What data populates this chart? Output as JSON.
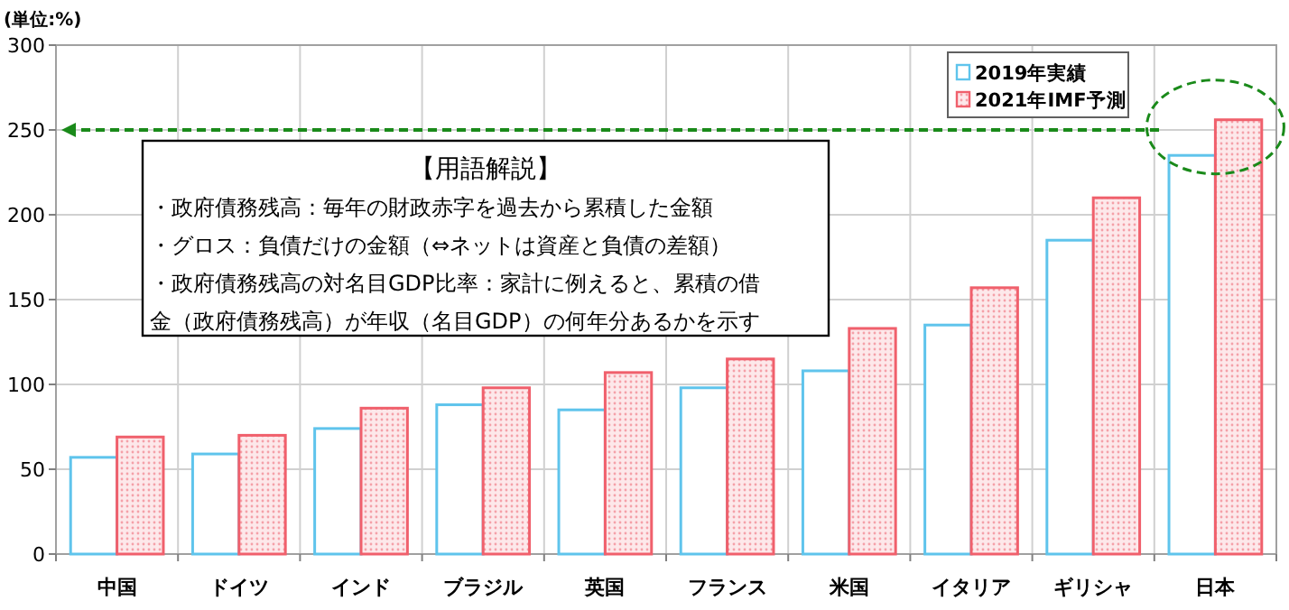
{
  "chart_data": {
    "type": "bar",
    "ylabel": "(単位:%)",
    "categories": [
      "中国",
      "ドイツ",
      "インド",
      "ブラジル",
      "英国",
      "フランス",
      "米国",
      "イタリア",
      "ギリシャ",
      "日本"
    ],
    "series": [
      {
        "name": "2019年実績",
        "color": "#5fc4ec",
        "values": [
          57,
          59,
          74,
          88,
          85,
          98,
          108,
          135,
          185,
          235
        ]
      },
      {
        "name": "2021年IMF予測",
        "color": "#f0606c",
        "values": [
          69,
          70,
          86,
          98,
          107,
          115,
          133,
          157,
          210,
          256
        ]
      }
    ],
    "ylim": [
      0,
      300
    ],
    "yticks": [
      0,
      50,
      100,
      150,
      200,
      250,
      300
    ],
    "grid": true,
    "legend": "top right",
    "ref_lines": [
      {
        "axis": "y",
        "value": 250,
        "color": "#1a8a1a",
        "line_style": "dashed"
      }
    ],
    "annotations": [
      "【用語解説】",
      "・政府債務残高：毎年の財政赤字を過去から累積した金額",
      "・グロス：負債だけの金額（⇔ネットは資産と負債の差額）",
      "・政府債務残高の対名目GDP比率：家計に例えると、累積の借",
      "金（政府債務残高）が年収（名目GDP）の何年分あるかを示す"
    ]
  }
}
